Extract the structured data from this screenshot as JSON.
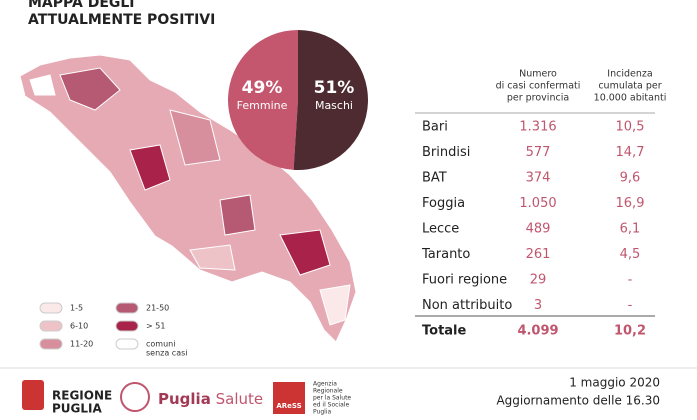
{
  "title": [
    "MAPPA DEGLI",
    "ATTUALMENTE POSITIVI"
  ],
  "chart_data": {
    "type": "pie",
    "categories": [
      "Femmine",
      "Maschi"
    ],
    "values": [
      49,
      51
    ],
    "value_labels": [
      "49%",
      "51%"
    ],
    "colors": [
      "#c4566e",
      "#4d2b31"
    ]
  },
  "legend": [
    {
      "label": "1-5",
      "color": "#fbe9ea"
    },
    {
      "label": "6-10",
      "color": "#eec3c8"
    },
    {
      "label": "11-20",
      "color": "#d78f9d"
    },
    {
      "label": "21-50",
      "color": "#b55a72"
    },
    {
      "label": "> 51",
      "color": "#a8224a"
    },
    {
      "label": [
        "comuni",
        "senza casi"
      ],
      "color": "#ffffff"
    }
  ],
  "table": {
    "header": [
      [
        "Numero",
        "di casi confermati",
        "per provincia"
      ],
      [
        "Incidenza",
        "cumulata per",
        "10.000 abitanti"
      ]
    ],
    "rows": [
      [
        "Bari",
        "1.316",
        "10,5"
      ],
      [
        "Brindisi",
        "577",
        "14,7"
      ],
      [
        "BAT",
        "374",
        "9,6"
      ],
      [
        "Foggia",
        "1.050",
        "16,9"
      ],
      [
        "Lecce",
        "489",
        "6,1"
      ],
      [
        "Taranto",
        "261",
        "4,5"
      ],
      [
        "Fuori regione",
        "29",
        "-"
      ],
      [
        "Non attribuito",
        "3",
        "-"
      ]
    ],
    "total": [
      "Totale",
      "4.099",
      "10,2"
    ]
  },
  "footer": {
    "region": [
      "REGIONE",
      "PUGLIA"
    ],
    "brand": [
      "Puglia",
      "Salute"
    ],
    "aress": "AReSS",
    "agency": [
      "Agenzia",
      "Regionale",
      "per la Salute",
      "ed il Sociale",
      "Puglia"
    ],
    "date": "1 maggio 2020",
    "update": "Aggiornamento delle 16.30"
  }
}
